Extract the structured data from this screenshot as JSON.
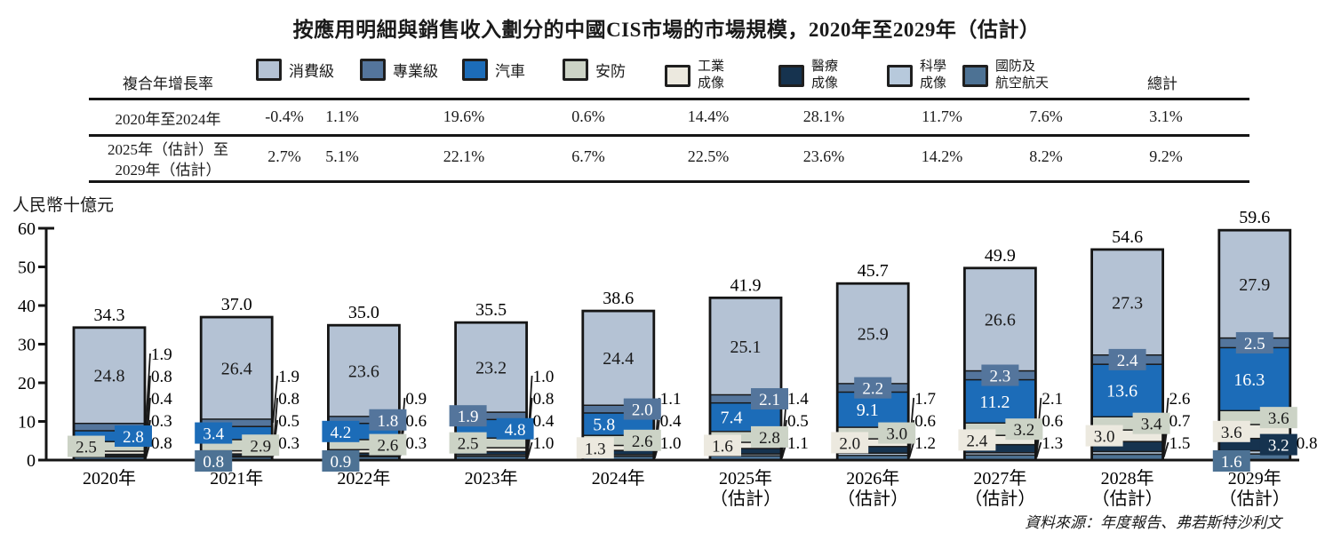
{
  "title": "按應用明細與銷售收入劃分的中國CIS市場的市場規模，2020年至2029年（估計）",
  "source": "資料來源：年度報告、弗若斯特沙利文",
  "y_axis": {
    "label": "人民幣十億元",
    "ticks": [
      0,
      10,
      20,
      30,
      40,
      50,
      60
    ],
    "max": 60
  },
  "cagr_table": {
    "row_header": "複合年增長率",
    "total_label": "總計",
    "rows": [
      {
        "label_lines": [
          "2020年至2024年"
        ],
        "values": [
          "-0.4%",
          "1.1%",
          "19.6%",
          "0.6%",
          "14.4%",
          "28.1%",
          "11.7%",
          "7.6%",
          "3.1%"
        ]
      },
      {
        "label_lines": [
          "2025年（估計）至",
          "2029年（估計）"
        ],
        "values": [
          "2.7%",
          "5.1%",
          "22.1%",
          "6.7%",
          "22.5%",
          "23.6%",
          "14.2%",
          "8.2%",
          "9.2%"
        ]
      }
    ]
  },
  "legend": [
    {
      "name": "消費級",
      "lines": [
        "消費級"
      ],
      "color": "#b4c2d4"
    },
    {
      "name": "專業級",
      "lines": [
        "專業級"
      ],
      "color": "#54759c"
    },
    {
      "name": "汽車",
      "lines": [
        "汽車"
      ],
      "color": "#1c6cb8"
    },
    {
      "name": "安防",
      "lines": [
        "安防"
      ],
      "color": "#ccd3c6"
    },
    {
      "name": "工業成像",
      "lines": [
        "工業",
        "成像"
      ],
      "color": "#ece9df"
    },
    {
      "name": "醫療成像",
      "lines": [
        "醫療",
        "成像"
      ],
      "color": "#16334f"
    },
    {
      "name": "科學成像",
      "lines": [
        "科學",
        "成像"
      ],
      "color": "#b7c9dc"
    },
    {
      "name": "國防及航空航天",
      "lines": [
        "國防及",
        "航空航天"
      ],
      "color": "#4d7294"
    }
  ],
  "chart_data": {
    "type": "bar",
    "subtype": "stacked-bar",
    "ylabel": "人民幣十億元",
    "ylim": [
      0,
      60
    ],
    "stack_order_bottom_to_top": [
      "國防及航空航天",
      "科學成像",
      "醫療成像",
      "工業成像",
      "安防",
      "汽車",
      "專業級",
      "消費級"
    ],
    "years": [
      {
        "label": "2020年",
        "sub": "",
        "total": "34.3",
        "segments": [
          [
            "國防及航空航天",
            0.8,
            "callout"
          ],
          [
            "科學成像",
            0.3,
            "callout"
          ],
          [
            "醫療成像",
            0.4,
            "callout"
          ],
          [
            "工業成像",
            0.8,
            "callout"
          ],
          [
            "安防",
            2.5,
            "box",
            "left"
          ],
          [
            "汽車",
            2.8,
            "box",
            "right"
          ],
          [
            "專業級",
            1.9,
            "callout"
          ],
          [
            "消費級",
            24.8,
            "in"
          ]
        ]
      },
      {
        "label": "2021年",
        "sub": "",
        "total": "37.0",
        "segments": [
          [
            "國防及航空航天",
            0.8,
            "box",
            "lefthang"
          ],
          [
            "科學成像",
            0.3,
            "callout"
          ],
          [
            "醫療成像",
            0.5,
            "callout"
          ],
          [
            "工業成像",
            0.8,
            "callout"
          ],
          [
            "安防",
            2.9,
            "box",
            "right"
          ],
          [
            "汽車",
            3.4,
            "box",
            "left"
          ],
          [
            "專業級",
            1.9,
            "callout"
          ],
          [
            "消費級",
            26.4,
            "in"
          ]
        ]
      },
      {
        "label": "2022年",
        "sub": "",
        "total": "35.0",
        "segments": [
          [
            "國防及航空航天",
            0.9,
            "box",
            "lefthang"
          ],
          [
            "科學成像",
            0.3,
            "callout"
          ],
          [
            "醫療成像",
            0.6,
            "callout"
          ],
          [
            "工業成像",
            0.9,
            "callout"
          ],
          [
            "安防",
            2.6,
            "box",
            "right"
          ],
          [
            "汽車",
            4.2,
            "box",
            "left"
          ],
          [
            "專業級",
            1.8,
            "box",
            "right"
          ],
          [
            "消費級",
            23.6,
            "in"
          ]
        ]
      },
      {
        "label": "2023年",
        "sub": "",
        "total": "35.5",
        "segments": [
          [
            "國防及航空航天",
            1.0,
            "callout"
          ],
          [
            "科學成像",
            0.4,
            "callout"
          ],
          [
            "醫療成像",
            0.8,
            "callout"
          ],
          [
            "工業成像",
            1.0,
            "callout"
          ],
          [
            "安防",
            2.5,
            "box",
            "left"
          ],
          [
            "汽車",
            4.8,
            "box",
            "right"
          ],
          [
            "專業級",
            1.9,
            "box",
            "left"
          ],
          [
            "消費級",
            23.2,
            "in"
          ]
        ]
      },
      {
        "label": "2024年",
        "sub": "",
        "total": "38.6",
        "segments": [
          [
            "國防及航空航天",
            1.0,
            "callout"
          ],
          [
            "科學成像",
            0.4,
            "callout"
          ],
          [
            "醫療成像",
            1.1,
            "callout"
          ],
          [
            "工業成像",
            1.3,
            "box",
            "left"
          ],
          [
            "安防",
            2.6,
            "box",
            "right"
          ],
          [
            "汽車",
            5.8,
            "in"
          ],
          [
            "專業級",
            2.0,
            "box",
            "right"
          ],
          [
            "消費級",
            24.4,
            "in"
          ]
        ]
      },
      {
        "label": "2025年",
        "sub": "（估計）",
        "total": "41.9",
        "segments": [
          [
            "國防及航空航天",
            1.1,
            "callout"
          ],
          [
            "科學成像",
            0.5,
            "callout"
          ],
          [
            "醫療成像",
            1.4,
            "callout"
          ],
          [
            "工業成像",
            1.6,
            "box",
            "left"
          ],
          [
            "安防",
            2.8,
            "box",
            "right"
          ],
          [
            "汽車",
            7.4,
            "in"
          ],
          [
            "專業級",
            2.1,
            "box",
            "right"
          ],
          [
            "消費級",
            25.1,
            "in"
          ]
        ]
      },
      {
        "label": "2026年",
        "sub": "（估計）",
        "total": "45.7",
        "segments": [
          [
            "國防及航空航天",
            1.2,
            "callout"
          ],
          [
            "科學成像",
            0.6,
            "callout"
          ],
          [
            "醫療成像",
            1.7,
            "callout"
          ],
          [
            "工業成像",
            2.0,
            "box",
            "left"
          ],
          [
            "安防",
            3.0,
            "box",
            "right"
          ],
          [
            "汽車",
            9.1,
            "in"
          ],
          [
            "專業級",
            2.2,
            "box",
            "center"
          ],
          [
            "消費級",
            25.9,
            "in"
          ]
        ]
      },
      {
        "label": "2027年",
        "sub": "（估計）",
        "total": "49.9",
        "segments": [
          [
            "國防及航空航天",
            1.3,
            "callout"
          ],
          [
            "科學成像",
            0.6,
            "callout"
          ],
          [
            "醫療成像",
            2.1,
            "callout"
          ],
          [
            "工業成像",
            2.4,
            "box",
            "left"
          ],
          [
            "安防",
            3.2,
            "box",
            "right"
          ],
          [
            "汽車",
            11.2,
            "in"
          ],
          [
            "專業級",
            2.3,
            "box",
            "center"
          ],
          [
            "消費級",
            26.6,
            "in"
          ]
        ]
      },
      {
        "label": "2028年",
        "sub": "（估計）",
        "total": "54.6",
        "segments": [
          [
            "國防及航空航天",
            1.5,
            "callout"
          ],
          [
            "科學成像",
            0.7,
            "callout"
          ],
          [
            "醫療成像",
            2.6,
            "callout"
          ],
          [
            "工業成像",
            3.0,
            "box",
            "left"
          ],
          [
            "安防",
            3.4,
            "box",
            "right"
          ],
          [
            "汽車",
            13.6,
            "in"
          ],
          [
            "專業級",
            2.4,
            "box",
            "center"
          ],
          [
            "消費級",
            27.3,
            "in"
          ]
        ]
      },
      {
        "label": "2029年",
        "sub": "（估計）",
        "total": "59.6",
        "segments": [
          [
            "國防及航空航天",
            1.6,
            "box",
            "lefthang"
          ],
          [
            "科學成像",
            0.8,
            "callout"
          ],
          [
            "醫療成像",
            3.2,
            "box",
            "right"
          ],
          [
            "工業成像",
            3.6,
            "box",
            "left"
          ],
          [
            "安防",
            3.6,
            "box",
            "right"
          ],
          [
            "汽車",
            16.3,
            "in"
          ],
          [
            "專業級",
            2.5,
            "box",
            "center"
          ],
          [
            "消費級",
            27.9,
            "in"
          ]
        ]
      }
    ]
  }
}
